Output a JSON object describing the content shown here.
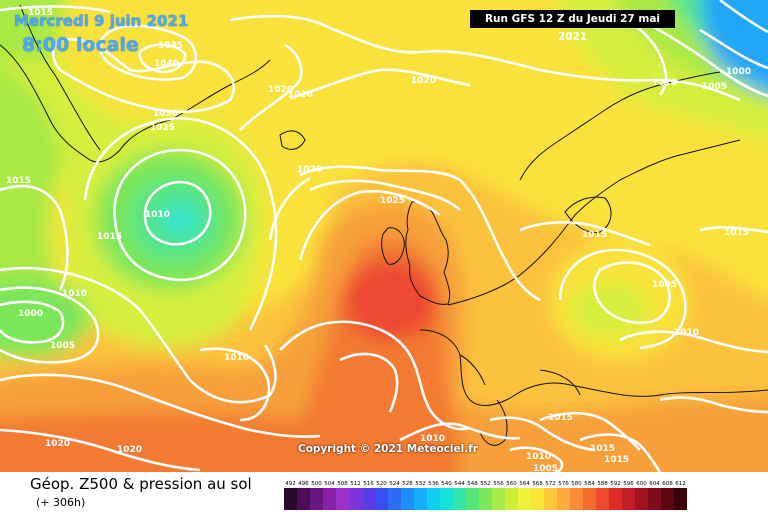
{
  "header": {
    "date": "Mercredi 9 juin 2021",
    "time": "8:00 locale",
    "run": "Run GFS 12 Z du Jeudi 27 mai 2021"
  },
  "copyright": "Copyright © 2021 Meteociel.fr",
  "footer": {
    "title": "Géop. Z500 & pression au sol",
    "subtitle": "(+ 306h)"
  },
  "scale": {
    "labels": [
      "492",
      "496",
      "500",
      "504",
      "508",
      "512",
      "516",
      "520",
      "524",
      "528",
      "532",
      "536",
      "540",
      "544",
      "548",
      "552",
      "556",
      "560",
      "564",
      "568",
      "572",
      "576",
      "580",
      "584",
      "588",
      "592",
      "596",
      "600",
      "604",
      "608",
      "612"
    ],
    "colors": [
      "#2a0a2e",
      "#4b0d55",
      "#6a1680",
      "#8a1fa8",
      "#9b2fc8",
      "#7a34d8",
      "#5b3ce6",
      "#3a4cf2",
      "#2a6cf6",
      "#1f8cf8",
      "#14aefb",
      "#10cdf2",
      "#13e1d6",
      "#2ee6a8",
      "#55e77a",
      "#7de85a",
      "#a7ea46",
      "#cfee3c",
      "#eef238",
      "#fbe43a",
      "#fcc83c",
      "#fbab3a",
      "#f98a36",
      "#f56a31",
      "#ef4a2d",
      "#e02a2a",
      "#c41e26",
      "#a21422",
      "#800c1c",
      "#5e0612",
      "#3c020a"
    ]
  },
  "map": {
    "colors": {
      "deep_orange": "#f27a33",
      "orange": "#f7a03a",
      "light_orange": "#fbc23c",
      "yellow": "#f9e23a",
      "yellow_green": "#d6ee3c",
      "lime": "#a8e944",
      "green": "#7be65a",
      "sea_green": "#52e58a",
      "cyan": "#35e6cf",
      "blue": "#22a6f8",
      "red": "#ee4a30",
      "isobar": "#ffffff",
      "coast": "#111111"
    },
    "isobar_labels": [
      "1015",
      "1035",
      "1040",
      "1020",
      "1020",
      "1020",
      "1030",
      "1025",
      "1015",
      "1010",
      "1015",
      "1020",
      "1025",
      "1010",
      "1000",
      "1005",
      "1010",
      "1005",
      "1000",
      "1015",
      "1015",
      "1005",
      "1010",
      "1010",
      "1015",
      "1020",
      "1020",
      "1010",
      "1010",
      "1005",
      "1015",
      "1015"
    ]
  }
}
